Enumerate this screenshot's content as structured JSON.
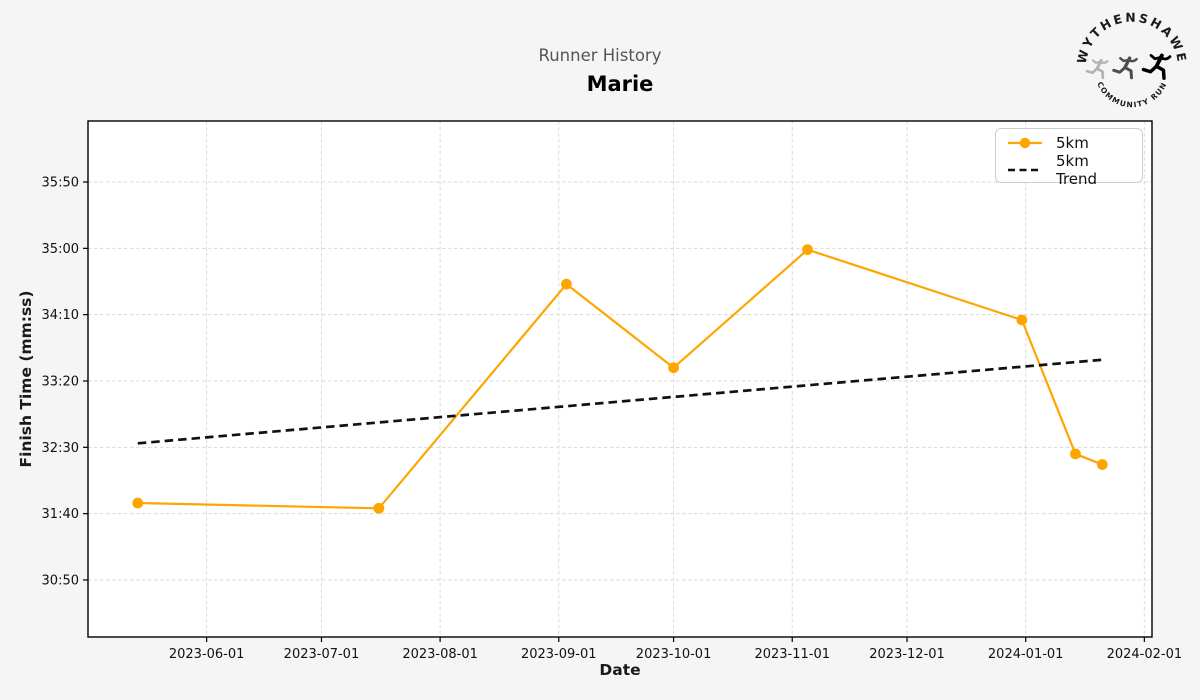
{
  "chart_data": {
    "type": "line",
    "suptitle": "Runner History",
    "title": "Marie",
    "xlabel": "Date",
    "ylabel": "Finish Time (mm:ss)",
    "grid": true,
    "legend_position": "upper right",
    "xlim": [
      "2023-05-01",
      "2024-02-03"
    ],
    "ylim_mmss": [
      "30:07",
      "36:36"
    ],
    "x_ticks": [
      "2023-06-01",
      "2023-07-01",
      "2023-08-01",
      "2023-09-01",
      "2023-10-01",
      "2023-11-01",
      "2023-12-01",
      "2024-01-01",
      "2024-02-01"
    ],
    "y_ticks": [
      "35:50",
      "35:00",
      "34:10",
      "33:20",
      "32:30",
      "31:40",
      "30:50"
    ],
    "series": [
      {
        "name": "5km",
        "color": "#FFA500",
        "points": [
          {
            "date": "2023-05-14",
            "time": "31:48"
          },
          {
            "date": "2023-07-16",
            "time": "31:44"
          },
          {
            "date": "2023-09-03",
            "time": "34:33"
          },
          {
            "date": "2023-10-01",
            "time": "33:30"
          },
          {
            "date": "2023-11-05",
            "time": "34:59"
          },
          {
            "date": "2023-12-31",
            "time": "34:06"
          },
          {
            "date": "2024-01-14",
            "time": "32:25"
          },
          {
            "date": "2024-01-21",
            "time": "32:17"
          }
        ]
      }
    ],
    "trend": {
      "name": "5km Trend",
      "color": "#111111",
      "start": {
        "date": "2023-05-14",
        "time": "32:33"
      },
      "end": {
        "date": "2024-01-21",
        "time": "33:36"
      }
    }
  },
  "logo": {
    "top_text": "WYTHENSHAWE",
    "bottom_text": "COMMUNITY RUN"
  },
  "colors": {
    "figure_bg": "#f5f5f5",
    "plot_bg": "#ffffff",
    "grid": "#dadada",
    "spine": "#000000",
    "tick_label": "#111111",
    "subtitle_text": "#555555"
  }
}
